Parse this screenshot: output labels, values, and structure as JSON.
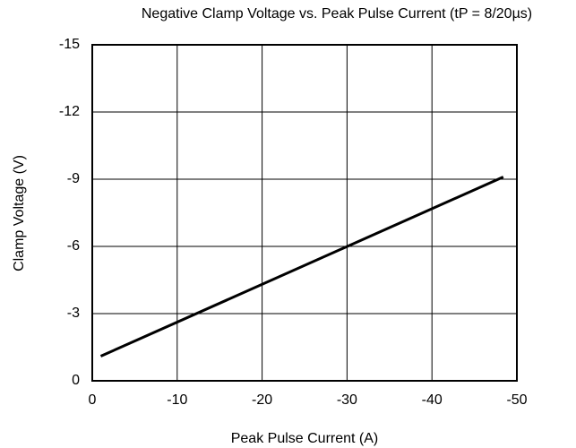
{
  "chart_data": {
    "type": "line",
    "title": "Negative Clamp Voltage vs. Peak Pulse Current (tP = 8/20µs)",
    "xlabel": "Peak Pulse Current (A)",
    "ylabel": "Clamp Voltage (V)",
    "x": [
      -1,
      -48.4
    ],
    "series": [
      {
        "color": "#000000",
        "values": [
          -1.1,
          -9.1
        ]
      }
    ],
    "xlim": [
      0,
      -50
    ],
    "xticks": [
      0,
      -10,
      -20,
      -30,
      -40,
      -50
    ],
    "ylim": [
      0,
      -15
    ],
    "yticks": [
      0,
      -3,
      -6,
      -9,
      -12,
      -15
    ],
    "grid": true
  }
}
